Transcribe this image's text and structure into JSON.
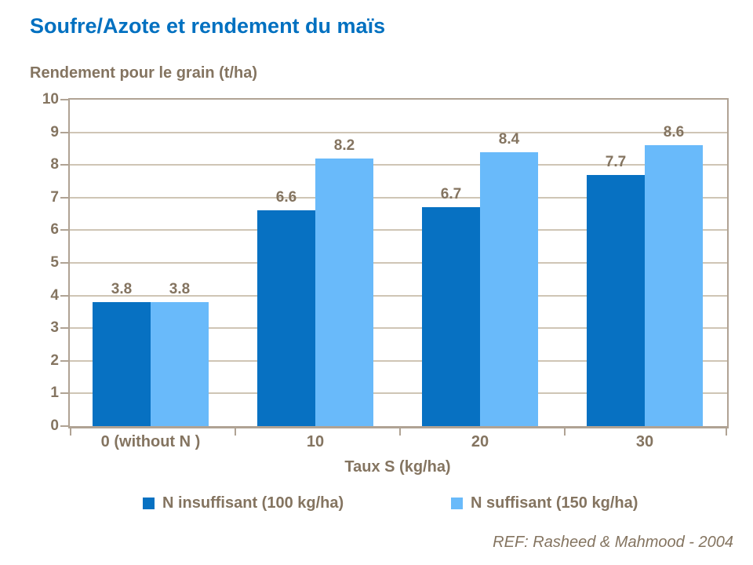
{
  "colors": {
    "title_blue": "#0070c0",
    "text_brown": "#847460",
    "gridline": "#cfc5b5",
    "axis_border": "#b0a394",
    "series_dark_blue": "#0771c2",
    "series_light_blue": "#69bafa"
  },
  "footer": {
    "ref": "REF: Rasheed & Mahmood - 2004"
  },
  "chart_data": {
    "type": "bar",
    "title": "Soufre/Azote et rendement du maïs",
    "y_axis_title_above": "Rendement pour le grain (t/ha)",
    "xlabel": "Taux S (kg/ha)",
    "ylabel": "Rendement pour le grain (t/ha)",
    "categories": [
      "0 (without N )",
      "10",
      "20",
      "30"
    ],
    "series": [
      {
        "name": "N insuffisant (100 kg/ha)",
        "color": "#0771c2",
        "values": [
          3.8,
          6.6,
          6.7,
          7.7
        ]
      },
      {
        "name": "N suffisant (150 kg/ha)",
        "color": "#69bafa",
        "values": [
          3.8,
          8.2,
          8.4,
          8.6
        ]
      }
    ],
    "data_labels": true,
    "ylim": [
      0,
      10
    ],
    "ytick_step": 1,
    "grid": true,
    "vertical_gridlines": false,
    "legend_position": "bottom"
  }
}
